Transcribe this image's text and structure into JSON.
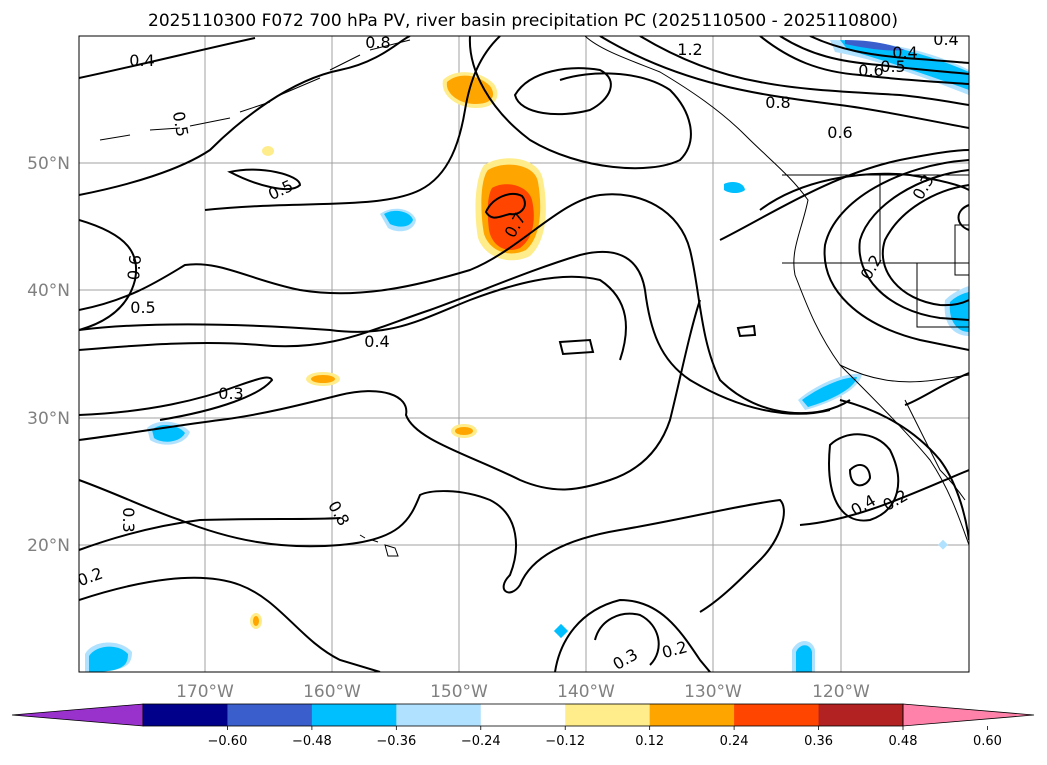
{
  "title": "2025110300 F072 700 hPa PV, river basin precipitation PC (2025110500 - 2025110800)",
  "lat_labels": [
    "50°N",
    "40°N",
    "30°N",
    "20°N"
  ],
  "lon_labels": [
    "170°W",
    "160°W",
    "150°W",
    "140°W",
    "130°W",
    "120°W"
  ],
  "contour_labels": [
    "0.4",
    "0.8",
    "1.2",
    "0.4",
    "0.5",
    "0.8",
    "0.6",
    "0.4",
    "0.5",
    "0.6",
    "0.7",
    "0.5",
    "0.6",
    "0.5",
    "0.4",
    "0.3",
    "0.3",
    "0.2",
    "0.3",
    "0.2",
    "0.4",
    "0.2",
    "0.8",
    "0.3",
    "0.2"
  ],
  "colorbar": {
    "ticks": [
      "−0.60",
      "−0.48",
      "−0.36",
      "−0.24",
      "−0.12",
      "0.12",
      "0.24",
      "0.36",
      "0.48",
      "0.60"
    ],
    "colors": [
      "#9932CC",
      "#00008B",
      "#3A5FCD",
      "#00BFFF",
      "#B0E2FF",
      "#FFFFFF",
      "#FFEC8B",
      "#FFA500",
      "#FF4500",
      "#B22222",
      "#FF82AB"
    ]
  },
  "colors": {
    "grid": "#a0a0a0",
    "label_gray": "#808080",
    "orange": "#FFA500",
    "red_orange": "#FF4500",
    "light_yellow": "#FFEC8B",
    "deep_sky_blue": "#00BFFF",
    "light_blue": "#B0E2FF",
    "royal_blue": "#3A5FCD"
  }
}
